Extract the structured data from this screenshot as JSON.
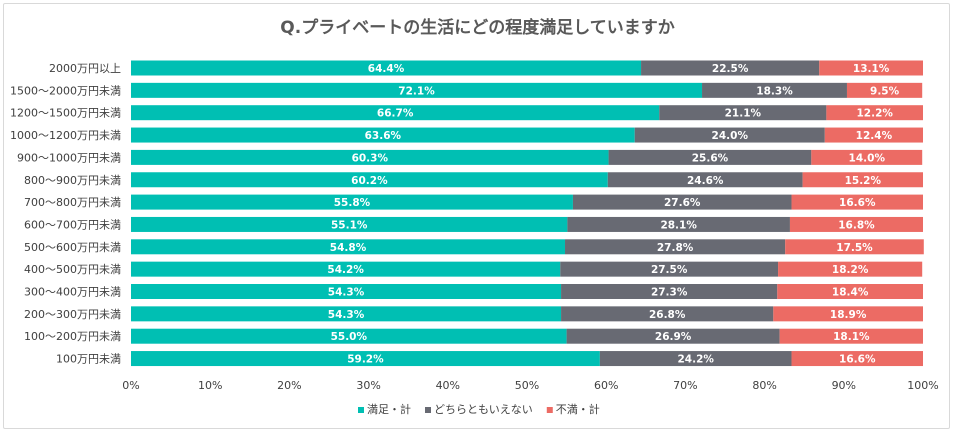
{
  "chart_data": {
    "type": "bar",
    "orientation": "horizontal",
    "stacked": true,
    "percent_stacked": true,
    "title": "Q.プライベートの生活にどの程度満足していますか",
    "categories": [
      "2000万円以上",
      "1500～2000万円未満",
      "1200～1500万円未満",
      "1000～1200万円未満",
      "900～1000万円未満",
      "800～900万円未満",
      "700～800万円未満",
      "600～700万円未満",
      "500～600万円未満",
      "400～500万円未満",
      "300～400万円未満",
      "200～300万円未満",
      "100～200万円未満",
      "100万円未満"
    ],
    "series": [
      {
        "name": "満足・計",
        "color": "#00bfb3",
        "values": [
          64.4,
          72.1,
          66.7,
          63.6,
          60.3,
          60.2,
          55.8,
          55.1,
          54.8,
          54.2,
          54.3,
          54.3,
          55.0,
          59.2
        ],
        "labels": [
          "64.4%",
          "72.1%",
          "66.7%",
          "63.6%",
          "60.3%",
          "60.2%",
          "55.8%",
          "55.1%",
          "54.8%",
          "54.2%",
          "54.3%",
          "54.3%",
          "55.0%",
          "59.2%"
        ]
      },
      {
        "name": "どちらともいえない",
        "color": "#686a73",
        "values": [
          22.5,
          18.3,
          21.1,
          24.0,
          25.6,
          24.6,
          27.6,
          28.1,
          27.8,
          27.5,
          27.3,
          26.8,
          26.9,
          24.2
        ],
        "labels": [
          "22.5%",
          "18.3%",
          "21.1%",
          "24.0%",
          "25.6%",
          "24.6%",
          "27.6%",
          "28.1%",
          "27.8%",
          "27.5%",
          "27.3%",
          "26.8%",
          "26.9%",
          "24.2%"
        ]
      },
      {
        "name": "不満・計",
        "color": "#ec6b64",
        "values": [
          13.1,
          9.5,
          12.2,
          12.4,
          14.0,
          15.2,
          16.6,
          16.8,
          17.5,
          18.2,
          18.4,
          18.9,
          18.1,
          16.6
        ],
        "labels": [
          "13.1%",
          "9.5%",
          "12.2%",
          "12.4%",
          "14.0%",
          "15.2%",
          "16.6%",
          "16.8%",
          "17.5%",
          "18.2%",
          "18.4%",
          "18.9%",
          "18.1%",
          "16.6%"
        ]
      }
    ],
    "xlim": [
      0,
      100
    ],
    "x_ticks": [
      "0%",
      "10%",
      "20%",
      "30%",
      "40%",
      "50%",
      "60%",
      "70%",
      "80%",
      "90%",
      "100%"
    ],
    "grid": false,
    "legend_position": "bottom"
  },
  "colors": {
    "title_text": "#595959",
    "axis_text": "#404040",
    "bar_label": "#ffffff"
  }
}
